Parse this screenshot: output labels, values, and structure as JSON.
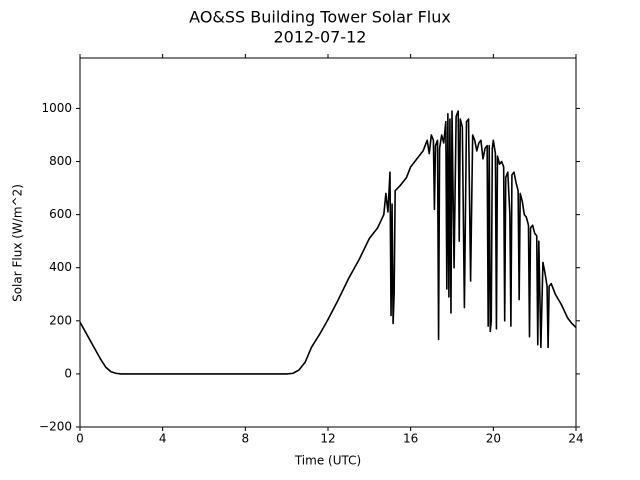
{
  "chart_data": {
    "type": "line",
    "title": "AO&SS Building Tower Solar Flux",
    "subtitle": "2012-07-12",
    "x_label": "Time (UTC)",
    "y_label": "Solar Flux (W/m^2)",
    "color": "#000000",
    "xlim": [
      0,
      24
    ],
    "xticks": [
      0,
      4,
      8,
      12,
      16,
      20,
      24
    ],
    "ylim": [
      -200,
      1190
    ],
    "yticks": [
      {
        "value": -200,
        "label": "−200"
      },
      0,
      200,
      400,
      600,
      800,
      1000
    ],
    "grid": false,
    "x": [
      0,
      0.25,
      0.5,
      0.75,
      1,
      1.25,
      1.5,
      1.75,
      2,
      3,
      4,
      5,
      6,
      7,
      8,
      9,
      10,
      10.3,
      10.6,
      10.9,
      11.2,
      11.6,
      12,
      12.5,
      13,
      13.5,
      14,
      14.4,
      14.7,
      14.8,
      14.9,
      15,
      15.05,
      15.1,
      15.15,
      15.2,
      15.25,
      15.5,
      15.8,
      16,
      16.3,
      16.6,
      16.8,
      16.9,
      17,
      17.1,
      17.15,
      17.2,
      17.3,
      17.35,
      17.4,
      17.5,
      17.6,
      17.7,
      17.75,
      17.8,
      17.85,
      17.9,
      17.95,
      18,
      18.1,
      18.2,
      18.3,
      18.35,
      18.4,
      18.5,
      18.6,
      18.7,
      18.8,
      18.9,
      19,
      19.1,
      19.2,
      19.3,
      19.4,
      19.5,
      19.6,
      19.7,
      19.75,
      19.8,
      19.85,
      19.9,
      19.95,
      20,
      20.1,
      20.15,
      20.2,
      20.3,
      20.4,
      20.5,
      20.55,
      20.6,
      20.7,
      20.8,
      20.85,
      20.9,
      21,
      21.1,
      21.2,
      21.25,
      21.3,
      21.4,
      21.5,
      21.6,
      21.7,
      21.75,
      21.8,
      21.9,
      22,
      22.1,
      22.15,
      22.2,
      22.3,
      22.4,
      22.5,
      22.6,
      22.65,
      22.7,
      22.8,
      22.9,
      23,
      23.3,
      23.6,
      23.8,
      24
    ],
    "values": [
      195,
      160,
      125,
      90,
      55,
      25,
      8,
      2,
      0,
      0,
      0,
      0,
      0,
      0,
      0,
      0,
      0,
      2,
      15,
      45,
      100,
      150,
      205,
      280,
      360,
      430,
      510,
      550,
      600,
      680,
      610,
      760,
      220,
      640,
      190,
      300,
      690,
      710,
      740,
      780,
      810,
      840,
      880,
      830,
      900,
      880,
      620,
      860,
      880,
      130,
      850,
      900,
      870,
      950,
      320,
      980,
      290,
      960,
      230,
      990,
      400,
      970,
      990,
      500,
      960,
      930,
      250,
      950,
      960,
      350,
      900,
      880,
      840,
      870,
      880,
      810,
      850,
      860,
      180,
      860,
      160,
      200,
      850,
      880,
      830,
      170,
      820,
      790,
      800,
      780,
      200,
      740,
      760,
      600,
      180,
      750,
      760,
      720,
      690,
      280,
      680,
      650,
      600,
      590,
      560,
      140,
      550,
      560,
      530,
      520,
      110,
      500,
      100,
      420,
      380,
      330,
      100,
      330,
      340,
      320,
      300,
      260,
      210,
      190,
      175
    ]
  }
}
